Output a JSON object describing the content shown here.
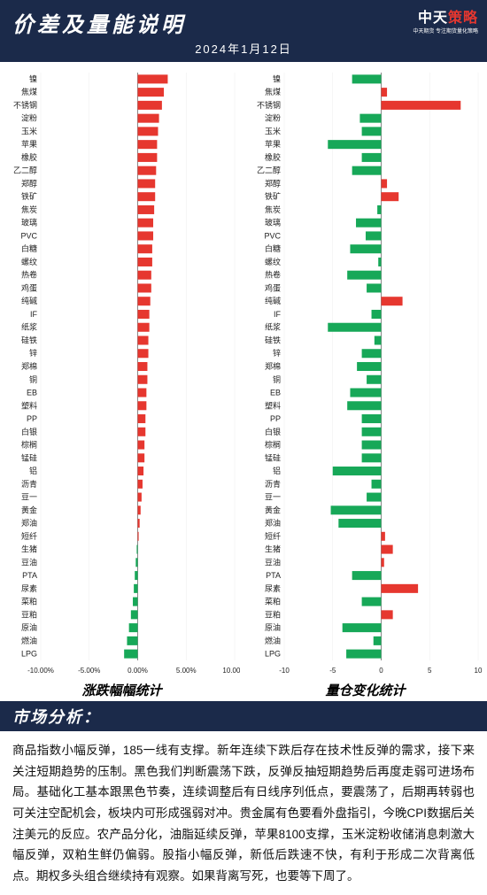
{
  "header": {
    "title": "价差及量能说明",
    "date": "2024年1月12日",
    "logo_prefix": "中天",
    "logo_suffix": "策略",
    "logo_tag": "中天期货  专注期货量化策略"
  },
  "colors": {
    "header_bg": "#1b2a4a",
    "pos": "#e6372f",
    "neg": "#17a858",
    "grid": "#f0f0f0",
    "axis": "#888888"
  },
  "categories": [
    "镍",
    "焦煤",
    "不锈钢",
    "淀粉",
    "玉米",
    "苹果",
    "橡胶",
    "乙二醇",
    "郑醇",
    "铁矿",
    "焦炭",
    "玻璃",
    "PVC",
    "白糖",
    "螺纹",
    "热卷",
    "鸡蛋",
    "纯碱",
    "IF",
    "纸浆",
    "硅铁",
    "锌",
    "郑棉",
    "铜",
    "EB",
    "塑料",
    "PP",
    "白银",
    "棕榈",
    "锰硅",
    "铝",
    "沥青",
    "豆一",
    "黄金",
    "郑油",
    "短纤",
    "生猪",
    "豆油",
    "PTA",
    "尿素",
    "菜粕",
    "豆粕",
    "原油",
    "燃油",
    "LPG"
  ],
  "left_chart": {
    "title": "涨跌幅幅统计",
    "xmin": -10,
    "xmax": 10,
    "xstep": 5,
    "xfmt": "pct",
    "values": [
      3.1,
      2.7,
      2.5,
      2.2,
      2.1,
      2.0,
      2.0,
      1.9,
      1.8,
      1.8,
      1.7,
      1.6,
      1.6,
      1.5,
      1.5,
      1.4,
      1.4,
      1.3,
      1.2,
      1.2,
      1.1,
      1.1,
      1.0,
      1.0,
      0.9,
      0.9,
      0.8,
      0.8,
      0.7,
      0.7,
      0.6,
      0.5,
      0.4,
      0.3,
      0.2,
      0.1,
      -0.1,
      -0.2,
      -0.3,
      -0.4,
      -0.5,
      -0.7,
      -0.9,
      -1.1,
      -1.4
    ]
  },
  "right_chart": {
    "title": "量仓变化统计",
    "xmin": -10,
    "xmax": 10,
    "xstep": 5,
    "xfmt": "num",
    "values": [
      -3.0,
      0.6,
      8.2,
      -2.2,
      -2.0,
      -5.5,
      -2.0,
      -3.0,
      0.6,
      1.8,
      -0.4,
      -2.6,
      -1.6,
      -3.2,
      -0.3,
      -3.5,
      -1.5,
      2.2,
      -1.0,
      -5.5,
      -0.7,
      -2.0,
      -2.5,
      -1.5,
      -3.2,
      -3.5,
      -2.0,
      -2.0,
      -2.0,
      -2.0,
      -5.0,
      -1.0,
      -1.5,
      -5.2,
      -4.4,
      0.4,
      1.2,
      0.3,
      -3.0,
      3.8,
      -2.0,
      1.2,
      -4.0,
      -0.8,
      -3.6
    ]
  },
  "section_title": "市场分析：",
  "analysis_text": "商品指数小幅反弹，185一线有支撑。新年连续下跌后存在技术性反弹的需求，接下来关注短期趋势的压制。黑色我们判断震荡下跌，反弹反抽短期趋势后再度走弱可进场布局。基础化工基本跟黑色节奏，连续调整后有日线序列低点，要震荡了，后期再转弱也可关注空配机会，板块内可形成强弱对冲。贵金属有色要看外盘指引，今晚CPI数据后关注美元的反应。农产品分化，油脂延续反弹，苹果8100支撑，玉米淀粉收储消息刺激大幅反弹，双粕生鲜仍偏弱。股指小幅反弹，新低后跌速不快，有利于形成二次背离低点。期权多头组合继续持有观察。如果背离写死，也要等下周了。"
}
